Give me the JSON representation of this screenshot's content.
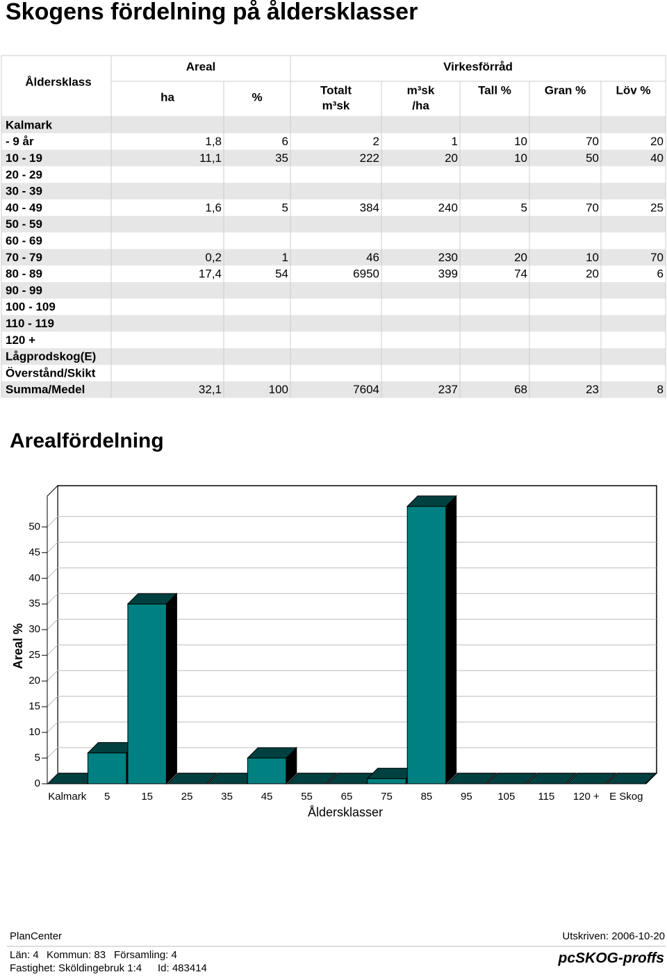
{
  "title": "Skogens fördelning på åldersklasser",
  "table": {
    "row_header": "Åldersklass",
    "groups": [
      "Areal",
      "Virkesförråd"
    ],
    "columns": [
      [
        "ha"
      ],
      [
        "%"
      ],
      [
        "Totalt",
        "m³sk"
      ],
      [
        "m³sk",
        "/ha"
      ],
      [
        "Tall %"
      ],
      [
        "Gran %"
      ],
      [
        "Löv %"
      ]
    ],
    "rows": [
      [
        "Kalmark",
        null,
        null,
        null,
        null,
        null,
        null,
        null
      ],
      [
        "- 9 år",
        "1,8",
        6,
        2,
        1,
        10,
        70,
        20
      ],
      [
        "10 - 19",
        "11,1",
        35,
        222,
        20,
        10,
        50,
        40
      ],
      [
        "20 - 29",
        null,
        null,
        null,
        null,
        null,
        null,
        null
      ],
      [
        "30 - 39",
        null,
        null,
        null,
        null,
        null,
        null,
        null
      ],
      [
        "40 - 49",
        "1,6",
        5,
        384,
        240,
        5,
        70,
        25
      ],
      [
        "50 - 59",
        null,
        null,
        null,
        null,
        null,
        null,
        null
      ],
      [
        "60 - 69",
        null,
        null,
        null,
        null,
        null,
        null,
        null
      ],
      [
        "70 - 79",
        "0,2",
        1,
        46,
        230,
        20,
        10,
        70
      ],
      [
        "80 - 89",
        "17,4",
        54,
        6950,
        399,
        74,
        20,
        6
      ],
      [
        "90 - 99",
        null,
        null,
        null,
        null,
        null,
        null,
        null
      ],
      [
        "100 - 109",
        null,
        null,
        null,
        null,
        null,
        null,
        null
      ],
      [
        "110 - 119",
        null,
        null,
        null,
        null,
        null,
        null,
        null
      ],
      [
        "120 +",
        null,
        null,
        null,
        null,
        null,
        null,
        null
      ],
      [
        "Lågprodskog(E)",
        null,
        null,
        null,
        null,
        null,
        null,
        null
      ],
      [
        "Överstånd/Skikt",
        null,
        null,
        null,
        null,
        null,
        null,
        null
      ],
      [
        "Summa/Medel",
        "32,1",
        100,
        7604,
        237,
        68,
        23,
        8
      ]
    ]
  },
  "chart_data": {
    "type": "bar3d",
    "title": "Arealfördelning",
    "x_label": "Åldersklasser",
    "y_label": "Areal %",
    "categories": [
      "Kalmark",
      "5",
      "15",
      "25",
      "35",
      "45",
      "55",
      "65",
      "75",
      "85",
      "95",
      "105",
      "115",
      "120 +",
      "E Skog"
    ],
    "values": [
      0,
      6,
      35,
      0,
      0,
      5,
      0,
      0,
      1,
      54,
      0,
      0,
      0,
      0,
      0
    ],
    "color": "#008080",
    "ylim": [
      0,
      56
    ],
    "yticks": [
      0,
      5,
      10,
      15,
      20,
      25,
      30,
      35,
      40,
      45,
      50
    ],
    "grid": true
  },
  "footer": {
    "left": "PlanCenter",
    "right": "Utskriven: 2006-10-20",
    "info": [
      "Län: 4",
      "Kommun: 83",
      "Församling: 4"
    ],
    "property": "Fastighet: Sköldingebruk 1:4",
    "id": "Id: 483414",
    "logo": "pcSKOG-proffs"
  }
}
